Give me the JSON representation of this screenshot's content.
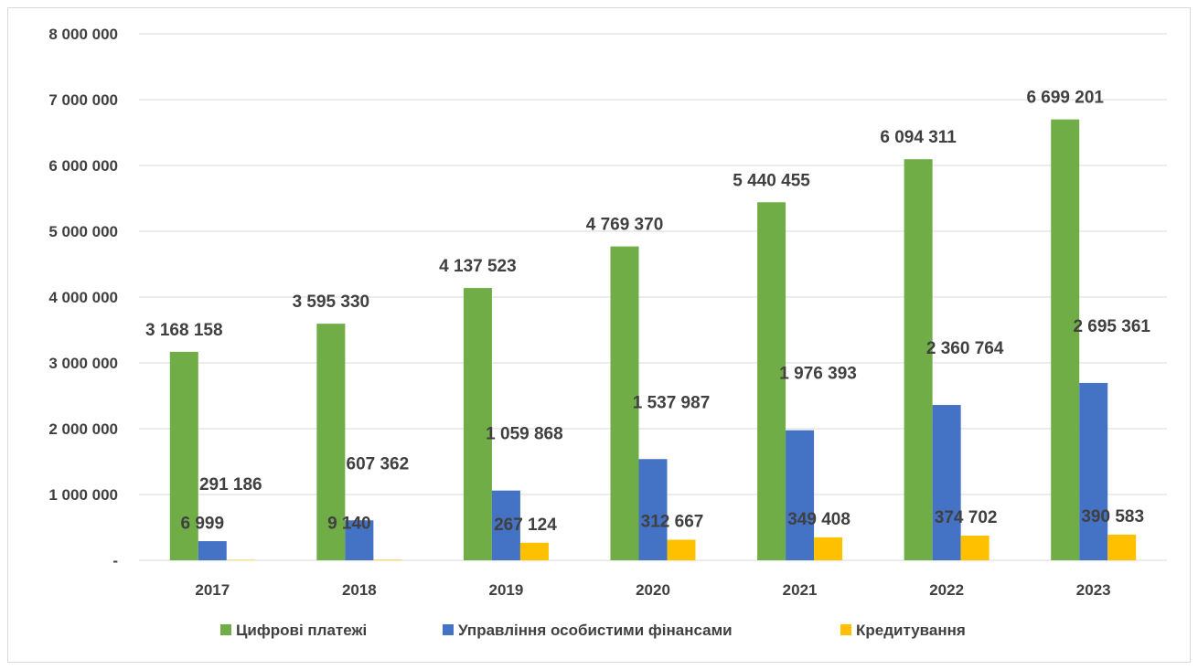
{
  "chart_data": {
    "type": "bar",
    "categories": [
      "2017",
      "2018",
      "2019",
      "2020",
      "2021",
      "2022",
      "2023"
    ],
    "series": [
      {
        "name": "Цифрові платежі",
        "color": "#70ad47",
        "values": [
          3168158,
          3595330,
          4137523,
          4769370,
          5440455,
          6094311,
          6699201
        ],
        "labels": [
          "3 168 158",
          "3 595 330",
          "4 137 523",
          "4 769 370",
          "5 440 455",
          "6 094 311",
          "6 699 201"
        ]
      },
      {
        "name": "Управління особистими фінансами",
        "color": "#4472c4",
        "values": [
          291186,
          607362,
          1059868,
          1537987,
          1976393,
          2360764,
          2695361
        ],
        "labels": [
          "291 186",
          "607 362",
          "1 059 868",
          "1 537 987",
          "1 976 393",
          "2 360 764",
          "2 695 361"
        ]
      },
      {
        "name": "Кредитування",
        "color": "#ffc000",
        "values": [
          6999,
          9140,
          267124,
          312667,
          349408,
          374702,
          390583
        ],
        "labels": [
          "6 999",
          "9 140",
          "267 124",
          "312 667",
          "349 408",
          "374 702",
          "390 583"
        ]
      }
    ],
    "ylim": [
      0,
      8000000
    ],
    "yticks": [
      0,
      1000000,
      2000000,
      3000000,
      4000000,
      5000000,
      6000000,
      7000000,
      8000000
    ],
    "ytick_labels": [
      "-",
      "1 000 000",
      "2 000 000",
      "3 000 000",
      "4 000 000",
      "5 000 000",
      "6 000 000",
      "7 000 000",
      "8 000 000"
    ],
    "grid": true,
    "legend_position": "bottom",
    "title": "",
    "xlabel": "",
    "ylabel": ""
  }
}
